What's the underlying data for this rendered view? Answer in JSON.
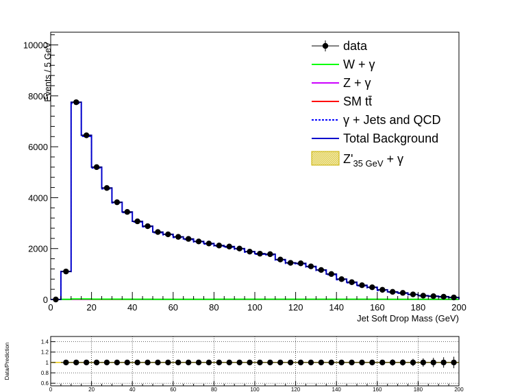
{
  "chart_data": [
    {
      "type": "line",
      "title": "",
      "xlabel": "Jet Soft Drop Mass (GeV)",
      "ylabel": "Events / 5 GeV",
      "xlim": [
        0,
        200
      ],
      "ylim": [
        0,
        10500
      ],
      "bin_width": 5,
      "x_ticks": [
        0,
        20,
        40,
        60,
        80,
        100,
        120,
        140,
        160,
        180,
        200
      ],
      "y_ticks": [
        0,
        2000,
        4000,
        6000,
        8000,
        10000
      ],
      "legend_position": "top-right",
      "legend": [
        {
          "label": "data",
          "style": "marker",
          "color": "#000000"
        },
        {
          "label": "W + γ",
          "style": "line",
          "color": "#00ff00"
        },
        {
          "label": "Z + γ",
          "style": "line",
          "color": "#cc00ff"
        },
        {
          "label": "SM tt̄",
          "style": "line",
          "color": "#ff0000"
        },
        {
          "label": "γ + Jets and QCD",
          "style": "dashed",
          "color": "#0000ff"
        },
        {
          "label": "Total Background",
          "style": "line",
          "color": "#0000cc"
        },
        {
          "label": "Z'",
          "label_sub": "35 GeV",
          "label_tail": " + γ",
          "style": "fill",
          "color": "#e8d44d"
        }
      ],
      "x_bin_edges_start": 0,
      "series": [
        {
          "name": "data",
          "values": [
            0,
            1100,
            7750,
            6450,
            5200,
            4380,
            3820,
            3440,
            3070,
            2880,
            2650,
            2560,
            2460,
            2380,
            2280,
            2200,
            2120,
            2080,
            2000,
            1880,
            1800,
            1780,
            1570,
            1440,
            1420,
            1300,
            1160,
            1000,
            800,
            680,
            560,
            480,
            380,
            300,
            260,
            200,
            150,
            130,
            110,
            80
          ]
        },
        {
          "name": "Total Background",
          "values": [
            0,
            1100,
            7750,
            6450,
            5200,
            4380,
            3820,
            3440,
            3070,
            2880,
            2650,
            2560,
            2460,
            2380,
            2280,
            2200,
            2120,
            2080,
            2000,
            1880,
            1800,
            1780,
            1570,
            1440,
            1420,
            1300,
            1160,
            1000,
            800,
            680,
            560,
            480,
            380,
            300,
            260,
            200,
            150,
            130,
            110,
            80
          ]
        },
        {
          "name": "γ + Jets and QCD",
          "values": [
            0,
            1090,
            7700,
            6400,
            5160,
            4340,
            3790,
            3410,
            3040,
            2850,
            2620,
            2530,
            2430,
            2350,
            2250,
            2170,
            2090,
            2050,
            1970,
            1850,
            1770,
            1750,
            1540,
            1410,
            1390,
            1270,
            1130,
            970,
            770,
            650,
            530,
            450,
            350,
            280,
            240,
            180,
            135,
            115,
            95,
            70
          ]
        },
        {
          "name": "W + γ",
          "values": [
            0,
            5,
            20,
            20,
            15,
            15,
            12,
            10,
            10,
            10,
            8,
            8,
            8,
            8,
            8,
            8,
            10,
            10,
            10,
            10,
            10,
            10,
            10,
            10,
            10,
            10,
            10,
            10,
            10,
            10,
            10,
            10,
            10,
            8,
            8,
            8,
            6,
            6,
            6,
            5
          ]
        },
        {
          "name": "Z + γ",
          "values": [
            0,
            2,
            8,
            8,
            6,
            6,
            5,
            5,
            4,
            4,
            4,
            4,
            4,
            4,
            4,
            4,
            4,
            4,
            4,
            4,
            4,
            4,
            4,
            4,
            4,
            4,
            4,
            4,
            4,
            4,
            4,
            4,
            3,
            3,
            3,
            3,
            2,
            2,
            2,
            2
          ]
        },
        {
          "name": "SM tt̄",
          "values": [
            0,
            1,
            3,
            3,
            3,
            3,
            3,
            3,
            3,
            3,
            3,
            3,
            3,
            3,
            3,
            3,
            3,
            3,
            3,
            3,
            3,
            3,
            3,
            3,
            3,
            3,
            3,
            3,
            3,
            3,
            3,
            3,
            3,
            3,
            3,
            3,
            3,
            3,
            3,
            3
          ]
        }
      ]
    },
    {
      "type": "scatter",
      "title": "",
      "xlabel": "",
      "ylabel": "Data/Prediction",
      "xlim": [
        0,
        200
      ],
      "ylim": [
        0.55,
        1.5
      ],
      "x_ticks": [
        0,
        20,
        40,
        60,
        80,
        100,
        120,
        140,
        160,
        180,
        200
      ],
      "y_ticks": [
        0.6,
        0.8,
        1,
        1.2,
        1.4
      ],
      "y_tick_labels": [
        "0.6",
        "0.8",
        "1",
        "1.2",
        "1.4"
      ],
      "grid": true,
      "reference_line": 1,
      "x": [
        7.5,
        12.5,
        17.5,
        22.5,
        27.5,
        32.5,
        37.5,
        42.5,
        47.5,
        52.5,
        57.5,
        62.5,
        67.5,
        72.5,
        77.5,
        82.5,
        87.5,
        92.5,
        97.5,
        102.5,
        107.5,
        112.5,
        117.5,
        122.5,
        127.5,
        132.5,
        137.5,
        142.5,
        147.5,
        152.5,
        157.5,
        162.5,
        167.5,
        172.5,
        177.5,
        182.5,
        187.5,
        192.5,
        197.5
      ],
      "y": [
        1,
        1,
        1,
        1,
        1,
        1,
        1,
        1,
        1,
        1,
        1,
        1,
        1,
        1,
        1,
        1,
        1,
        1,
        1,
        1,
        1,
        1,
        1,
        1,
        1,
        1,
        1,
        1,
        1,
        1,
        1,
        1,
        1,
        1,
        1,
        1,
        1,
        1,
        1
      ],
      "errors": [
        0.03,
        0.01,
        0.01,
        0.01,
        0.015,
        0.015,
        0.015,
        0.02,
        0.02,
        0.02,
        0.02,
        0.02,
        0.02,
        0.02,
        0.02,
        0.02,
        0.02,
        0.02,
        0.025,
        0.025,
        0.025,
        0.025,
        0.025,
        0.025,
        0.03,
        0.03,
        0.03,
        0.035,
        0.04,
        0.04,
        0.045,
        0.05,
        0.06,
        0.06,
        0.07,
        0.08,
        0.09,
        0.1,
        0.11
      ]
    }
  ]
}
